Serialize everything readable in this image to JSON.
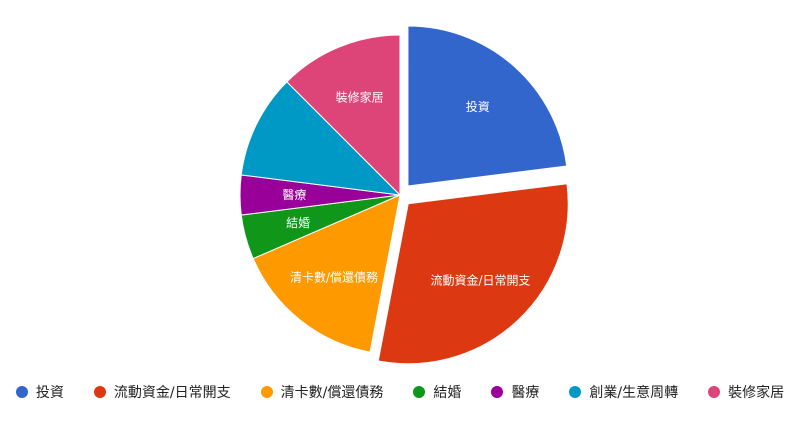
{
  "chart_data": {
    "type": "pie",
    "legend_position": "bottom",
    "slices": [
      {
        "label": "投資",
        "value": 23.0,
        "color": "#3366cc",
        "show_label": true,
        "exploded": true
      },
      {
        "label": "流動資金/日常開支",
        "value": 30.0,
        "color": "#dc3912",
        "show_label": true,
        "exploded": true
      },
      {
        "label": "清卡數/償還債務",
        "value": 15.5,
        "color": "#ff9900",
        "show_label": true,
        "exploded": false
      },
      {
        "label": "結婚",
        "value": 4.5,
        "color": "#109618",
        "show_label": true,
        "exploded": false
      },
      {
        "label": "醫療",
        "value": 4.0,
        "color": "#990099",
        "show_label": true,
        "exploded": false
      },
      {
        "label": "創業/生意周轉",
        "value": 10.5,
        "color": "#0099c6",
        "show_label": false,
        "exploded": false
      },
      {
        "label": "裝修家居",
        "value": 12.5,
        "color": "#dd4477",
        "show_label": true,
        "exploded": false
      }
    ]
  }
}
